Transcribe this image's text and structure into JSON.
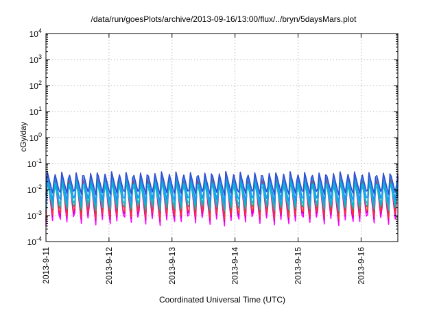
{
  "chart_data": {
    "type": "line",
    "title": "/data/run/goesPlots/archive/2013-09-16/13:00/flux/../bryn/5daysMars.plot",
    "xlabel": "Coordinated Universal Time (UTC)",
    "ylabel": "cGy/day",
    "yscale": "log",
    "ylim": [
      0.0001,
      10000
    ],
    "y_tick_base": "10",
    "y_ticks": [
      {
        "value": 0.0001,
        "exp": "-4"
      },
      {
        "value": 0.001,
        "exp": "-3"
      },
      {
        "value": 0.01,
        "exp": "-2"
      },
      {
        "value": 0.1,
        "exp": "-1"
      },
      {
        "value": 1,
        "exp": "0"
      },
      {
        "value": 10,
        "exp": "1"
      },
      {
        "value": 100,
        "exp": "2"
      },
      {
        "value": 1000,
        "exp": "3"
      },
      {
        "value": 10000,
        "exp": "4"
      }
    ],
    "xlim": [
      "2013-09-11T00:00",
      "2013-09-16T14:00"
    ],
    "x_ticks": [
      {
        "value": "2013-09-11T00:00",
        "label": "2013-9-11"
      },
      {
        "value": "2013-09-12T00:00",
        "label": "2013-9-12"
      },
      {
        "value": "2013-09-13T00:00",
        "label": "2013-9-13"
      },
      {
        "value": "2013-09-14T00:00",
        "label": "2013-9-14"
      },
      {
        "value": "2013-09-15T00:00",
        "label": "2013-9-15"
      },
      {
        "value": "2013-09-16T00:00",
        "label": "2013-9-16"
      }
    ],
    "grid": true,
    "legend": "none",
    "series_pattern": {
      "period_hours": 2.72,
      "sample_interval_hours": 0.5,
      "note_values_are_cGy_per_day": true
    },
    "series": [
      {
        "color": "#ff00ff",
        "peak": 0.05,
        "trough": 0.0004
      },
      {
        "color": "#c000c0",
        "peak": 0.04,
        "trough": 0.0006
      },
      {
        "color": "#ff3030",
        "peak": 0.05,
        "trough": 0.0007
      },
      {
        "color": "#a0522d",
        "peak": 0.035,
        "trough": 0.0012
      },
      {
        "color": "#20b2aa",
        "peak": 0.02,
        "trough": 0.0015
      },
      {
        "color": "#00bcd4",
        "peak": 0.025,
        "trough": 0.002
      },
      {
        "color": "#1e90ff",
        "peak": 0.045,
        "trough": 0.003
      },
      {
        "color": "#2f4fcf",
        "peak": 0.05,
        "trough": 0.006
      }
    ]
  }
}
